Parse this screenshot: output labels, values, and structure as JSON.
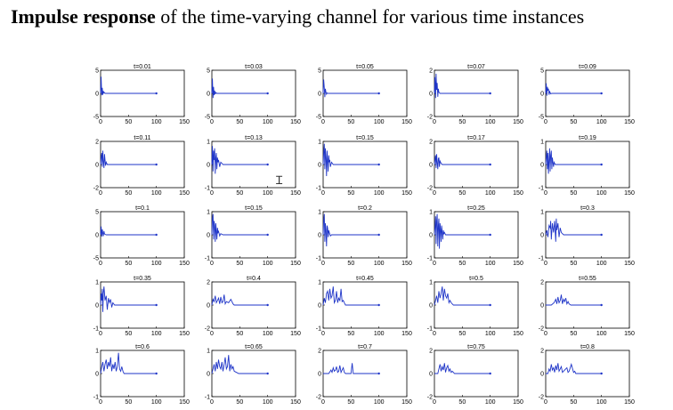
{
  "heading": {
    "bold": "Impulse response",
    "rest": " of the time-varying channel for various time instances"
  },
  "colors": {
    "line": "#1f35c8",
    "axes": "#000000",
    "background": "#ffffff"
  },
  "chart_data": {
    "type": "line",
    "layout": "grid 5 rows x 5 columns of small multiples",
    "xlim": [
      0,
      150
    ],
    "x_ticks": [
      0,
      50,
      100,
      150
    ],
    "grid": false,
    "plots": [
      {
        "title": "t=0.01",
        "ylim": [
          -5,
          5
        ],
        "y_ticks": [
          -5,
          0,
          5
        ],
        "x": [
          0,
          1,
          2,
          3,
          4,
          5,
          6,
          7,
          8,
          10,
          100
        ],
        "y": [
          0,
          3.6,
          -0.4,
          1.2,
          -0.3,
          0.5,
          0.1,
          0.2,
          0,
          0,
          0
        ]
      },
      {
        "title": "t=0.03",
        "ylim": [
          -5,
          5
        ],
        "y_ticks": [
          -5,
          0,
          5
        ],
        "x": [
          0,
          1,
          2,
          3,
          4,
          5,
          6,
          7,
          9,
          100
        ],
        "y": [
          0,
          3.2,
          -1.0,
          1.4,
          -0.4,
          0.6,
          -0.2,
          0.2,
          0,
          0
        ]
      },
      {
        "title": "t=0.05",
        "ylim": [
          -5,
          5
        ],
        "y_ticks": [
          -5,
          0,
          5
        ],
        "x": [
          0,
          1,
          2,
          3,
          4,
          5,
          6,
          7,
          9,
          100
        ],
        "y": [
          0,
          3.0,
          1.2,
          -0.8,
          1.0,
          0.3,
          -0.2,
          0.1,
          0,
          0
        ]
      },
      {
        "title": "t=0.07",
        "ylim": [
          -2,
          2
        ],
        "y_ticks": [
          -2,
          0,
          2
        ],
        "x": [
          0,
          1,
          2,
          3,
          4,
          5,
          6,
          7,
          8,
          10,
          100
        ],
        "y": [
          0,
          1.4,
          -0.4,
          1.7,
          0.3,
          0.9,
          -0.3,
          0.4,
          0.1,
          0,
          0
        ]
      },
      {
        "title": "t=0.09",
        "ylim": [
          -5,
          5
        ],
        "y_ticks": [
          -5,
          0,
          5
        ],
        "x": [
          0,
          1,
          2,
          3,
          4,
          5,
          6,
          7,
          8,
          9,
          11,
          100
        ],
        "y": [
          0,
          2.2,
          -0.5,
          1.4,
          0.6,
          1.0,
          -0.3,
          0.4,
          0.2,
          -0.1,
          0,
          0
        ]
      },
      {
        "title": "t=0.11",
        "ylim": [
          -2,
          2
        ],
        "y_ticks": [
          -2,
          0,
          2
        ],
        "x": [
          0,
          1,
          2,
          3,
          4,
          5,
          6,
          7,
          8,
          9,
          10,
          12,
          100
        ],
        "y": [
          0,
          0.6,
          1.0,
          -0.2,
          1.2,
          0.3,
          -0.3,
          0.9,
          0.4,
          -0.1,
          0.2,
          0,
          0
        ]
      },
      {
        "title": "t=0.13",
        "ylim": [
          -1,
          1
        ],
        "y_ticks": [
          -1,
          0,
          1
        ],
        "x": [
          0,
          1,
          2,
          3,
          4,
          5,
          6,
          7,
          8,
          9,
          10,
          11,
          12,
          14,
          16,
          18,
          20,
          100
        ],
        "y": [
          0,
          0.8,
          -0.3,
          0.6,
          0.2,
          0.7,
          -0.4,
          0.3,
          0.5,
          -0.2,
          0.3,
          0.1,
          0.2,
          -0.1,
          0.1,
          0.05,
          0,
          0
        ]
      },
      {
        "title": "t=0.15",
        "ylim": [
          -1,
          1
        ],
        "y_ticks": [
          -1,
          0,
          1
        ],
        "x": [
          0,
          1,
          2,
          3,
          4,
          5,
          6,
          7,
          8,
          9,
          10,
          11,
          12,
          13,
          15,
          18,
          100
        ],
        "y": [
          0,
          0.5,
          0.9,
          -0.2,
          0.7,
          0.3,
          -0.5,
          0.6,
          0.2,
          -0.3,
          0.4,
          0.1,
          0.2,
          -0.1,
          0.1,
          0,
          0
        ]
      },
      {
        "title": "t=0.17",
        "ylim": [
          -2,
          2
        ],
        "y_ticks": [
          -2,
          0,
          2
        ],
        "x": [
          0,
          1,
          2,
          3,
          4,
          5,
          6,
          7,
          8,
          9,
          10,
          12,
          14,
          100
        ],
        "y": [
          0,
          0.4,
          0.8,
          -0.3,
          0.9,
          0.2,
          -0.4,
          0.5,
          0.6,
          -0.2,
          0.3,
          0.1,
          0,
          0
        ]
      },
      {
        "title": "t=0.19",
        "ylim": [
          -1,
          1
        ],
        "y_ticks": [
          -1,
          0,
          1
        ],
        "x": [
          0,
          1,
          2,
          3,
          4,
          5,
          6,
          7,
          8,
          9,
          10,
          11,
          12,
          13,
          14,
          15,
          17,
          100
        ],
        "y": [
          0,
          0.3,
          0.6,
          -0.2,
          0.5,
          -0.4,
          0.2,
          0.7,
          -0.3,
          0.4,
          0.6,
          -0.2,
          0.3,
          0.1,
          -0.1,
          0.1,
          0,
          0
        ]
      },
      {
        "title": "t=0.1",
        "ylim": [
          -5,
          5
        ],
        "y_ticks": [
          -5,
          0,
          5
        ],
        "x": [
          0,
          1,
          2,
          3,
          4,
          5,
          6,
          7,
          8,
          10,
          100
        ],
        "y": [
          0,
          1.8,
          -0.4,
          1.2,
          0.4,
          -0.3,
          0.8,
          0.2,
          0.1,
          0,
          0
        ]
      },
      {
        "title": "t=0.15",
        "ylim": [
          -1,
          1
        ],
        "y_ticks": [
          -1,
          0,
          1
        ],
        "x": [
          0,
          1,
          2,
          3,
          4,
          5,
          6,
          7,
          8,
          9,
          10,
          11,
          12,
          14,
          16,
          20,
          100
        ],
        "y": [
          0,
          0.7,
          0.9,
          -0.2,
          0.6,
          0.4,
          -0.3,
          0.5,
          0.2,
          -0.2,
          0.3,
          0.1,
          0.15,
          -0.05,
          0.05,
          0,
          0
        ]
      },
      {
        "title": "t=0.2",
        "ylim": [
          -1,
          1
        ],
        "y_ticks": [
          -1,
          0,
          1
        ],
        "x": [
          0,
          1,
          2,
          3,
          4,
          5,
          6,
          7,
          8,
          9,
          10,
          11,
          13,
          15,
          100
        ],
        "y": [
          0,
          0.6,
          0.9,
          -0.3,
          0.5,
          0.2,
          -0.5,
          0.4,
          0.3,
          -0.1,
          0.2,
          0.1,
          -0.05,
          0,
          0
        ]
      },
      {
        "title": "t=0.25",
        "ylim": [
          -1,
          1
        ],
        "y_ticks": [
          -1,
          0,
          1
        ],
        "x": [
          0,
          1,
          2,
          3,
          4,
          5,
          6,
          7,
          8,
          9,
          10,
          11,
          12,
          13,
          14,
          15,
          16,
          17,
          18,
          20,
          100
        ],
        "y": [
          0,
          0.3,
          0.8,
          -0.4,
          0.6,
          0.9,
          -0.5,
          0.4,
          0.7,
          -0.6,
          0.5,
          0.2,
          -0.3,
          0.4,
          0.1,
          -0.2,
          0.2,
          0.05,
          0.1,
          0,
          0
        ]
      },
      {
        "title": "t=0.3",
        "ylim": [
          -1,
          1
        ],
        "y_ticks": [
          -1,
          0,
          1
        ],
        "x": [
          0,
          2,
          4,
          6,
          8,
          9,
          10,
          12,
          14,
          16,
          18,
          19,
          20,
          22,
          24,
          26,
          28,
          30,
          32,
          100
        ],
        "y": [
          0,
          0.2,
          -0.1,
          0.4,
          0.3,
          0.6,
          -0.2,
          0.5,
          0.1,
          0.6,
          -0.3,
          0.7,
          0.2,
          0.5,
          -0.1,
          0.3,
          0.1,
          0.05,
          0,
          0
        ]
      },
      {
        "title": "t=0.35",
        "ylim": [
          -1,
          1
        ],
        "y_ticks": [
          -1,
          0,
          1
        ],
        "x": [
          0,
          1,
          2,
          3,
          4,
          5,
          6,
          8,
          10,
          12,
          14,
          16,
          18,
          20,
          22,
          25,
          100
        ],
        "y": [
          0,
          0.5,
          0.2,
          0.7,
          -0.3,
          0.5,
          0.8,
          0.2,
          0.4,
          -0.2,
          0.3,
          0.1,
          0.25,
          -0.1,
          0.1,
          0,
          0
        ]
      },
      {
        "title": "t=0.4",
        "ylim": [
          -2,
          2
        ],
        "y_ticks": [
          -2,
          0,
          2
        ],
        "x": [
          0,
          2,
          4,
          6,
          8,
          10,
          12,
          14,
          16,
          18,
          20,
          22,
          24,
          26,
          30,
          34,
          38,
          40,
          100
        ],
        "y": [
          0,
          0.5,
          0.3,
          0.8,
          0.2,
          0.4,
          0.6,
          0.1,
          0.7,
          0.2,
          0.3,
          0.9,
          0.1,
          0.3,
          0.2,
          0.5,
          0.1,
          0,
          0
        ]
      },
      {
        "title": "t=0.45",
        "ylim": [
          -1,
          1
        ],
        "y_ticks": [
          -1,
          0,
          1
        ],
        "x": [
          0,
          2,
          4,
          6,
          8,
          10,
          12,
          14,
          16,
          18,
          20,
          22,
          24,
          26,
          28,
          30,
          32,
          34,
          36,
          38,
          40,
          100
        ],
        "y": [
          0,
          0.3,
          0.1,
          0.5,
          0.6,
          0.2,
          0.7,
          0.3,
          0.4,
          0.8,
          0.1,
          0.2,
          0.6,
          0.1,
          0.3,
          0.2,
          0.7,
          0.15,
          0.2,
          0.1,
          0,
          0
        ]
      },
      {
        "title": "t=0.5",
        "ylim": [
          -1,
          1
        ],
        "y_ticks": [
          -1,
          0,
          1
        ],
        "x": [
          0,
          2,
          4,
          6,
          8,
          10,
          12,
          14,
          16,
          18,
          20,
          22,
          24,
          26,
          28,
          30,
          34,
          100
        ],
        "y": [
          0,
          0.2,
          0.4,
          0.1,
          0.6,
          0.3,
          0.5,
          0.8,
          0.2,
          0.7,
          0.4,
          0.3,
          0.5,
          0.1,
          0.2,
          0.1,
          0,
          0
        ]
      },
      {
        "title": "t=0.55",
        "ylim": [
          -2,
          2
        ],
        "y_ticks": [
          -2,
          0,
          2
        ],
        "x": [
          0,
          10,
          15,
          18,
          20,
          22,
          24,
          26,
          28,
          30,
          32,
          34,
          36,
          38,
          40,
          42,
          45,
          100
        ],
        "y": [
          0,
          0,
          0.2,
          0.5,
          0.1,
          0.7,
          0.2,
          0.4,
          0.9,
          0.1,
          0.5,
          0.3,
          0.6,
          0.1,
          0.3,
          0.1,
          0,
          0
        ]
      },
      {
        "title": "t=0.6",
        "ylim": [
          -1,
          1
        ],
        "y_ticks": [
          -1,
          0,
          1
        ],
        "x": [
          0,
          2,
          4,
          6,
          8,
          10,
          12,
          14,
          16,
          18,
          20,
          22,
          24,
          26,
          28,
          30,
          32,
          34,
          36,
          38,
          40,
          42,
          100
        ],
        "y": [
          0,
          0.3,
          0.5,
          0.1,
          0.4,
          0.6,
          0.2,
          0.5,
          0.3,
          0.7,
          0.1,
          0.4,
          0.2,
          0.5,
          0.1,
          0.3,
          0.9,
          0.2,
          0.1,
          0.3,
          0.1,
          0,
          0
        ]
      },
      {
        "title": "t=0.65",
        "ylim": [
          -1,
          1
        ],
        "y_ticks": [
          -1,
          0,
          1
        ],
        "x": [
          0,
          2,
          4,
          6,
          8,
          10,
          12,
          14,
          16,
          18,
          20,
          22,
          24,
          26,
          28,
          30,
          32,
          34,
          36,
          38,
          40,
          44,
          48,
          100
        ],
        "y": [
          0,
          0.2,
          0.4,
          0.1,
          0.5,
          0.2,
          0.6,
          0.3,
          0.2,
          0.5,
          0.1,
          0.4,
          0.7,
          0.2,
          0.3,
          0.8,
          0.1,
          0.4,
          0.2,
          0.3,
          0.1,
          0.05,
          0,
          0
        ]
      },
      {
        "title": "t=0.7",
        "ylim": [
          -2,
          2
        ],
        "y_ticks": [
          -2,
          0,
          2
        ],
        "x": [
          0,
          10,
          14,
          16,
          18,
          20,
          22,
          24,
          26,
          28,
          30,
          32,
          34,
          36,
          38,
          40,
          50,
          52,
          54,
          60,
          100
        ],
        "y": [
          0,
          0,
          0.3,
          0.1,
          0.5,
          0.2,
          0.3,
          0.6,
          0.1,
          0.2,
          0.7,
          0.1,
          0.3,
          0.5,
          0.1,
          0,
          0,
          0.9,
          0,
          0,
          0
        ]
      },
      {
        "title": "t=0.75",
        "ylim": [
          -2,
          2
        ],
        "y_ticks": [
          -2,
          0,
          2
        ],
        "x": [
          0,
          6,
          8,
          10,
          12,
          14,
          16,
          18,
          20,
          22,
          24,
          26,
          28,
          30,
          32,
          36,
          100
        ],
        "y": [
          0,
          0,
          0.4,
          0.8,
          0.2,
          0.6,
          0.3,
          0.9,
          0.1,
          0.5,
          0.7,
          0.2,
          0.4,
          0.1,
          0.2,
          0,
          0
        ]
      },
      {
        "title": "t=0.8",
        "ylim": [
          -2,
          2
        ],
        "y_ticks": [
          -2,
          0,
          2
        ],
        "x": [
          0,
          4,
          6,
          8,
          10,
          12,
          14,
          16,
          18,
          20,
          22,
          24,
          26,
          28,
          30,
          34,
          38,
          40,
          42,
          46,
          50,
          52,
          54,
          60,
          100
        ],
        "y": [
          0,
          0,
          0.4,
          0.2,
          0.8,
          0.3,
          0.5,
          0.1,
          0.7,
          0.3,
          0.9,
          0.2,
          0.4,
          0.6,
          0.1,
          0.3,
          0.5,
          0.1,
          0.2,
          0.8,
          0.1,
          0.2,
          0,
          0,
          0
        ]
      }
    ]
  }
}
